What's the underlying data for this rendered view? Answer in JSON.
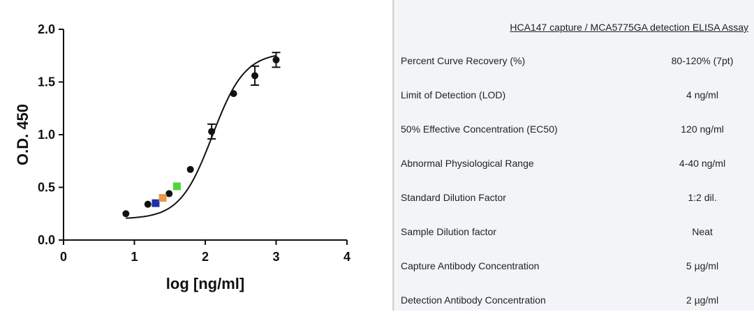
{
  "chart_data": {
    "type": "scatter",
    "title": "",
    "xlabel": "log [ng/ml]",
    "ylabel": "O.D. 450",
    "xlim": [
      0,
      4
    ],
    "ylim": [
      0,
      2.0
    ],
    "xticks": [
      0,
      1,
      2,
      3,
      4
    ],
    "yticks": [
      0.0,
      0.5,
      1.0,
      1.5,
      2.0
    ],
    "xtick_labels": [
      "0",
      "1",
      "2",
      "3",
      "4"
    ],
    "ytick_labels": [
      "0.0",
      "0.5",
      "1.0",
      "1.5",
      "2.0"
    ],
    "grid": false,
    "standards": [
      {
        "x": 0.88,
        "y": 0.25,
        "err": 0
      },
      {
        "x": 1.19,
        "y": 0.34,
        "err": 0
      },
      {
        "x": 1.49,
        "y": 0.44,
        "err": 0
      },
      {
        "x": 1.79,
        "y": 0.67,
        "err": 0
      },
      {
        "x": 2.09,
        "y": 1.03,
        "err": 0.07
      },
      {
        "x": 2.4,
        "y": 1.39,
        "err": 0
      },
      {
        "x": 2.7,
        "y": 1.56,
        "err": 0.09
      },
      {
        "x": 3.0,
        "y": 1.71,
        "err": 0.07
      }
    ],
    "samples": [
      {
        "x": 1.3,
        "y": 0.35,
        "color": "#1f2fa8"
      },
      {
        "x": 1.4,
        "y": 0.4,
        "color": "#e9974a"
      },
      {
        "x": 1.6,
        "y": 0.51,
        "color": "#52d43c"
      }
    ],
    "fit_curve": {
      "model": "4PL",
      "bottom": 0.2,
      "top": 1.78,
      "log_ec50": 2.1,
      "hill": 1.9,
      "x_range": [
        0.88,
        3.0
      ]
    }
  },
  "table": {
    "title": "HCA147 capture / MCA5775GA detection ELISA Assay",
    "rows": [
      {
        "param": "Percent Curve Recovery (%)",
        "value": "80-120% (7pt)"
      },
      {
        "param": "Limit of Detection (LOD)",
        "value": "4 ng/ml"
      },
      {
        "param": "50% Effective Concentration (EC50)",
        "value": "120 ng/ml"
      },
      {
        "param": "Abnormal Physiological Range",
        "value": "4-40 ng/ml"
      },
      {
        "param": "Standard Dilution Factor",
        "value": "1:2 dil."
      },
      {
        "param": "Sample Dilution factor",
        "value": "Neat"
      },
      {
        "param": "Capture Antibody Concentration",
        "value": "5 µg/ml"
      },
      {
        "param": "Detection Antibody Concentration",
        "value": "2 µg/ml"
      }
    ]
  }
}
